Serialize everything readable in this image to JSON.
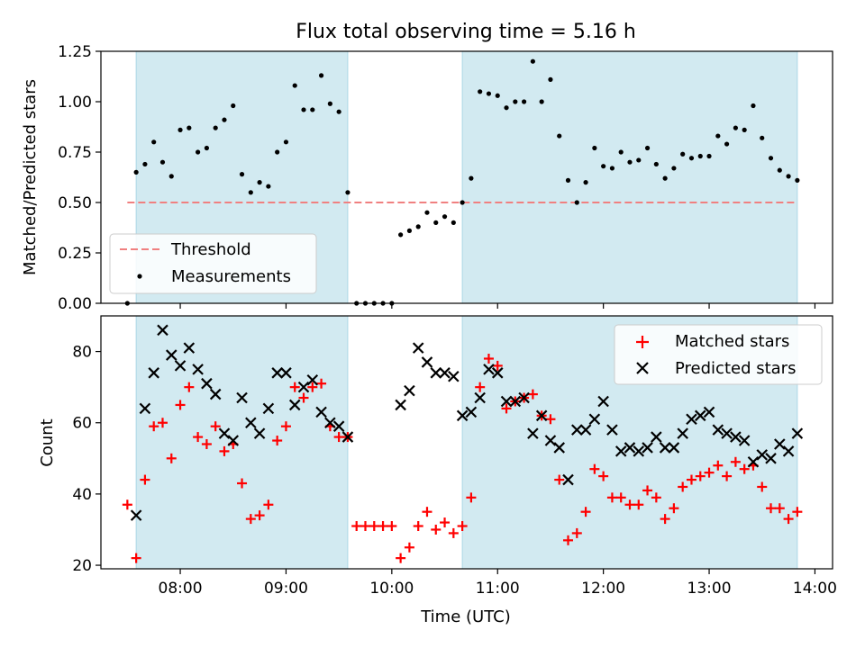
{
  "title": "Flux total observing time = 5.16 h",
  "colors": {
    "shade": "#add8e6",
    "threshold": "#f08080",
    "measurements": "#000000",
    "matched": "#ff0000",
    "predicted": "#000000"
  },
  "chart_data": [
    {
      "type": "scatter",
      "ylabel": "Matched/Predicted stars",
      "xlabel": "",
      "xlim": [
        "07:15",
        "14:10"
      ],
      "ylim": [
        0,
        1.25
      ],
      "ytick_labels": [
        "0.00",
        "0.25",
        "0.50",
        "0.75",
        "1.00",
        "1.25"
      ],
      "shaded_spans": [
        [
          "07:35",
          "09:35"
        ],
        [
          "10:40",
          "13:50"
        ]
      ],
      "threshold": {
        "value": 0.5,
        "x_range": [
          "07:30",
          "13:50"
        ]
      },
      "legend": {
        "placement": "lower-left",
        "entries": [
          "Threshold",
          "Measurements"
        ]
      },
      "series": [
        {
          "name": "Measurements",
          "points": [
            [
              "07:30",
              0.0
            ],
            [
              "07:35",
              0.65
            ],
            [
              "07:40",
              0.69
            ],
            [
              "07:45",
              0.8
            ],
            [
              "07:50",
              0.7
            ],
            [
              "07:55",
              0.63
            ],
            [
              "08:00",
              0.86
            ],
            [
              "08:05",
              0.87
            ],
            [
              "08:10",
              0.75
            ],
            [
              "08:15",
              0.77
            ],
            [
              "08:20",
              0.87
            ],
            [
              "08:25",
              0.91
            ],
            [
              "08:30",
              0.98
            ],
            [
              "08:35",
              0.64
            ],
            [
              "08:40",
              0.55
            ],
            [
              "08:45",
              0.6
            ],
            [
              "08:50",
              0.58
            ],
            [
              "08:55",
              0.75
            ],
            [
              "09:00",
              0.8
            ],
            [
              "09:05",
              1.08
            ],
            [
              "09:10",
              0.96
            ],
            [
              "09:15",
              0.96
            ],
            [
              "09:20",
              1.13
            ],
            [
              "09:25",
              0.99
            ],
            [
              "09:30",
              0.95
            ],
            [
              "09:35",
              0.55
            ],
            [
              "09:40",
              0.0
            ],
            [
              "09:45",
              0.0
            ],
            [
              "09:50",
              0.0
            ],
            [
              "09:55",
              0.0
            ],
            [
              "10:00",
              0.0
            ],
            [
              "10:05",
              0.34
            ],
            [
              "10:10",
              0.36
            ],
            [
              "10:15",
              0.38
            ],
            [
              "10:20",
              0.45
            ],
            [
              "10:25",
              0.4
            ],
            [
              "10:30",
              0.43
            ],
            [
              "10:35",
              0.4
            ],
            [
              "10:40",
              0.5
            ],
            [
              "10:45",
              0.62
            ],
            [
              "10:50",
              1.05
            ],
            [
              "10:55",
              1.04
            ],
            [
              "11:00",
              1.03
            ],
            [
              "11:05",
              0.97
            ],
            [
              "11:10",
              1.0
            ],
            [
              "11:15",
              1.0
            ],
            [
              "11:20",
              1.2
            ],
            [
              "11:25",
              1.0
            ],
            [
              "11:30",
              1.11
            ],
            [
              "11:35",
              0.83
            ],
            [
              "11:40",
              0.61
            ],
            [
              "11:45",
              0.5
            ],
            [
              "11:50",
              0.6
            ],
            [
              "11:55",
              0.77
            ],
            [
              "12:00",
              0.68
            ],
            [
              "12:05",
              0.67
            ],
            [
              "12:10",
              0.75
            ],
            [
              "12:15",
              0.7
            ],
            [
              "12:20",
              0.71
            ],
            [
              "12:25",
              0.77
            ],
            [
              "12:30",
              0.69
            ],
            [
              "12:35",
              0.62
            ],
            [
              "12:40",
              0.67
            ],
            [
              "12:45",
              0.74
            ],
            [
              "12:50",
              0.72
            ],
            [
              "12:55",
              0.73
            ],
            [
              "13:00",
              0.73
            ],
            [
              "13:05",
              0.83
            ],
            [
              "13:10",
              0.79
            ],
            [
              "13:15",
              0.87
            ],
            [
              "13:20",
              0.86
            ],
            [
              "13:25",
              0.98
            ],
            [
              "13:30",
              0.82
            ],
            [
              "13:35",
              0.72
            ],
            [
              "13:40",
              0.66
            ],
            [
              "13:45",
              0.63
            ],
            [
              "13:50",
              0.61
            ]
          ]
        }
      ]
    },
    {
      "type": "scatter",
      "ylabel": "Count",
      "xlabel": "Time (UTC)",
      "xlim": [
        "07:15",
        "14:10"
      ],
      "ylim": [
        19,
        90
      ],
      "ytick_labels": [
        "20",
        "40",
        "60",
        "80"
      ],
      "xtick_labels": [
        "08:00",
        "09:00",
        "10:00",
        "11:00",
        "12:00",
        "13:00",
        "14:00"
      ],
      "shaded_spans": [
        [
          "07:35",
          "09:35"
        ],
        [
          "10:40",
          "13:50"
        ]
      ],
      "legend": {
        "placement": "top-right",
        "entries": [
          "Matched stars",
          "Predicted stars"
        ]
      },
      "series": [
        {
          "name": "Matched stars",
          "points": [
            [
              "07:30",
              37
            ],
            [
              "07:35",
              22
            ],
            [
              "07:40",
              44
            ],
            [
              "07:45",
              59
            ],
            [
              "07:50",
              60
            ],
            [
              "07:55",
              50
            ],
            [
              "08:00",
              65
            ],
            [
              "08:05",
              70
            ],
            [
              "08:10",
              56
            ],
            [
              "08:15",
              54
            ],
            [
              "08:20",
              59
            ],
            [
              "08:25",
              52
            ],
            [
              "08:30",
              54
            ],
            [
              "08:35",
              43
            ],
            [
              "08:40",
              33
            ],
            [
              "08:45",
              34
            ],
            [
              "08:50",
              37
            ],
            [
              "08:55",
              55
            ],
            [
              "09:00",
              59
            ],
            [
              "09:05",
              70
            ],
            [
              "09:10",
              67
            ],
            [
              "09:15",
              70
            ],
            [
              "09:20",
              71
            ],
            [
              "09:25",
              59
            ],
            [
              "09:30",
              56
            ],
            [
              "09:35",
              56
            ],
            [
              "09:40",
              31
            ],
            [
              "09:45",
              31
            ],
            [
              "09:50",
              31
            ],
            [
              "09:55",
              31
            ],
            [
              "10:00",
              31
            ],
            [
              "10:05",
              22
            ],
            [
              "10:10",
              25
            ],
            [
              "10:15",
              31
            ],
            [
              "10:20",
              35
            ],
            [
              "10:25",
              30
            ],
            [
              "10:30",
              32
            ],
            [
              "10:35",
              29
            ],
            [
              "10:40",
              31
            ],
            [
              "10:45",
              39
            ],
            [
              "10:50",
              70
            ],
            [
              "10:55",
              78
            ],
            [
              "11:00",
              76
            ],
            [
              "11:05",
              64
            ],
            [
              "11:10",
              66
            ],
            [
              "11:15",
              67
            ],
            [
              "11:20",
              68
            ],
            [
              "11:25",
              62
            ],
            [
              "11:30",
              61
            ],
            [
              "11:35",
              44
            ],
            [
              "11:40",
              27
            ],
            [
              "11:45",
              29
            ],
            [
              "11:50",
              35
            ],
            [
              "11:55",
              47
            ],
            [
              "12:00",
              45
            ],
            [
              "12:05",
              39
            ],
            [
              "12:10",
              39
            ],
            [
              "12:15",
              37
            ],
            [
              "12:20",
              37
            ],
            [
              "12:25",
              41
            ],
            [
              "12:30",
              39
            ],
            [
              "12:35",
              33
            ],
            [
              "12:40",
              36
            ],
            [
              "12:45",
              42
            ],
            [
              "12:50",
              44
            ],
            [
              "12:55",
              45
            ],
            [
              "13:00",
              46
            ],
            [
              "13:05",
              48
            ],
            [
              "13:10",
              45
            ],
            [
              "13:15",
              49
            ],
            [
              "13:20",
              47
            ],
            [
              "13:25",
              48
            ],
            [
              "13:30",
              42
            ],
            [
              "13:35",
              36
            ],
            [
              "13:40",
              36
            ],
            [
              "13:45",
              33
            ],
            [
              "13:50",
              35
            ]
          ]
        },
        {
          "name": "Predicted stars",
          "points": [
            [
              "07:35",
              34
            ],
            [
              "07:40",
              64
            ],
            [
              "07:45",
              74
            ],
            [
              "07:50",
              86
            ],
            [
              "07:55",
              79
            ],
            [
              "08:00",
              76
            ],
            [
              "08:05",
              81
            ],
            [
              "08:10",
              75
            ],
            [
              "08:15",
              71
            ],
            [
              "08:20",
              68
            ],
            [
              "08:25",
              57
            ],
            [
              "08:30",
              55
            ],
            [
              "08:35",
              67
            ],
            [
              "08:40",
              60
            ],
            [
              "08:45",
              57
            ],
            [
              "08:50",
              64
            ],
            [
              "08:55",
              74
            ],
            [
              "09:00",
              74
            ],
            [
              "09:05",
              65
            ],
            [
              "09:10",
              70
            ],
            [
              "09:15",
              72
            ],
            [
              "09:20",
              63
            ],
            [
              "09:25",
              60
            ],
            [
              "09:30",
              59
            ],
            [
              "09:35",
              56
            ],
            [
              "10:05",
              65
            ],
            [
              "10:10",
              69
            ],
            [
              "10:15",
              81
            ],
            [
              "10:20",
              77
            ],
            [
              "10:25",
              74
            ],
            [
              "10:30",
              74
            ],
            [
              "10:35",
              73
            ],
            [
              "10:40",
              62
            ],
            [
              "10:45",
              63
            ],
            [
              "10:50",
              67
            ],
            [
              "10:55",
              75
            ],
            [
              "11:00",
              74
            ],
            [
              "11:05",
              66
            ],
            [
              "11:10",
              66
            ],
            [
              "11:15",
              67
            ],
            [
              "11:20",
              57
            ],
            [
              "11:25",
              62
            ],
            [
              "11:30",
              55
            ],
            [
              "11:35",
              53
            ],
            [
              "11:40",
              44
            ],
            [
              "11:45",
              58
            ],
            [
              "11:50",
              58
            ],
            [
              "11:55",
              61
            ],
            [
              "12:00",
              66
            ],
            [
              "12:05",
              58
            ],
            [
              "12:10",
              52
            ],
            [
              "12:15",
              53
            ],
            [
              "12:20",
              52
            ],
            [
              "12:25",
              53
            ],
            [
              "12:30",
              56
            ],
            [
              "12:35",
              53
            ],
            [
              "12:40",
              53
            ],
            [
              "12:45",
              57
            ],
            [
              "12:50",
              61
            ],
            [
              "12:55",
              62
            ],
            [
              "13:00",
              63
            ],
            [
              "13:05",
              58
            ],
            [
              "13:10",
              57
            ],
            [
              "13:15",
              56
            ],
            [
              "13:20",
              55
            ],
            [
              "13:25",
              49
            ],
            [
              "13:30",
              51
            ],
            [
              "13:35",
              50
            ],
            [
              "13:40",
              54
            ],
            [
              "13:45",
              52
            ],
            [
              "13:50",
              57
            ]
          ]
        }
      ]
    }
  ]
}
